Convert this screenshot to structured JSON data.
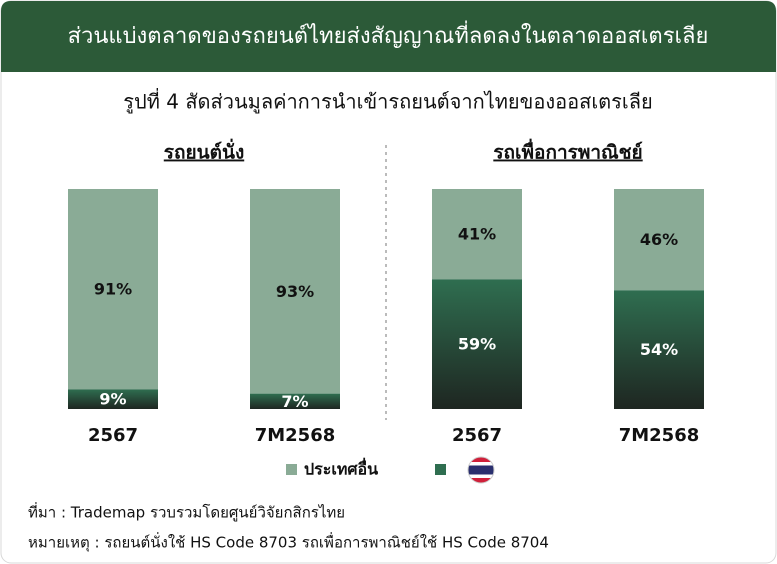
{
  "header": {
    "title": "ส่วนแบ่งตลาดของรถยนต์ไทยส่งสัญญาณที่ลดลงในตลาดออสเตรเลีย"
  },
  "figure_title": "รูปที่ 4 สัดส่วนมูลค่าการนำเข้ารถยนต์จากไทยของออสเตรเลีย",
  "chart_data": [
    {
      "type": "bar",
      "stacked": true,
      "title": "รถยนต์นั่ง",
      "categories": [
        "2567",
        "7M2568"
      ],
      "ylim": [
        0,
        100
      ],
      "series": [
        {
          "color": "#2f6e50",
          "values": [
            9,
            7
          ],
          "value_labels": [
            "9%",
            "7%"
          ]
        },
        {
          "name": "ประเทศอื่น",
          "color": "#8aab96",
          "values": [
            91,
            93
          ],
          "value_labels": [
            "91%",
            "93%"
          ]
        }
      ]
    },
    {
      "type": "bar",
      "stacked": true,
      "title": "รถเพื่อการพาณิชย์",
      "categories": [
        "2567",
        "7M2568"
      ],
      "ylim": [
        0,
        100
      ],
      "series": [
        {
          "color": "#2f6e50",
          "values": [
            59,
            54
          ],
          "value_labels": [
            "59%",
            "54%"
          ]
        },
        {
          "name": "ประเทศอื่น",
          "color": "#8aab96",
          "values": [
            41,
            46
          ],
          "value_labels": [
            "41%",
            "46%"
          ]
        }
      ]
    }
  ],
  "footer": {
    "source": "ที่มา : Trademap รวบรวมโดยศูนย์วิจัยกสิกรไทย",
    "note": "หมายเหตุ : รถยนต์นั่งใช้ HS Code 8703 รถเพื่อการพาณิชย์ใช้ HS Code 8704"
  }
}
